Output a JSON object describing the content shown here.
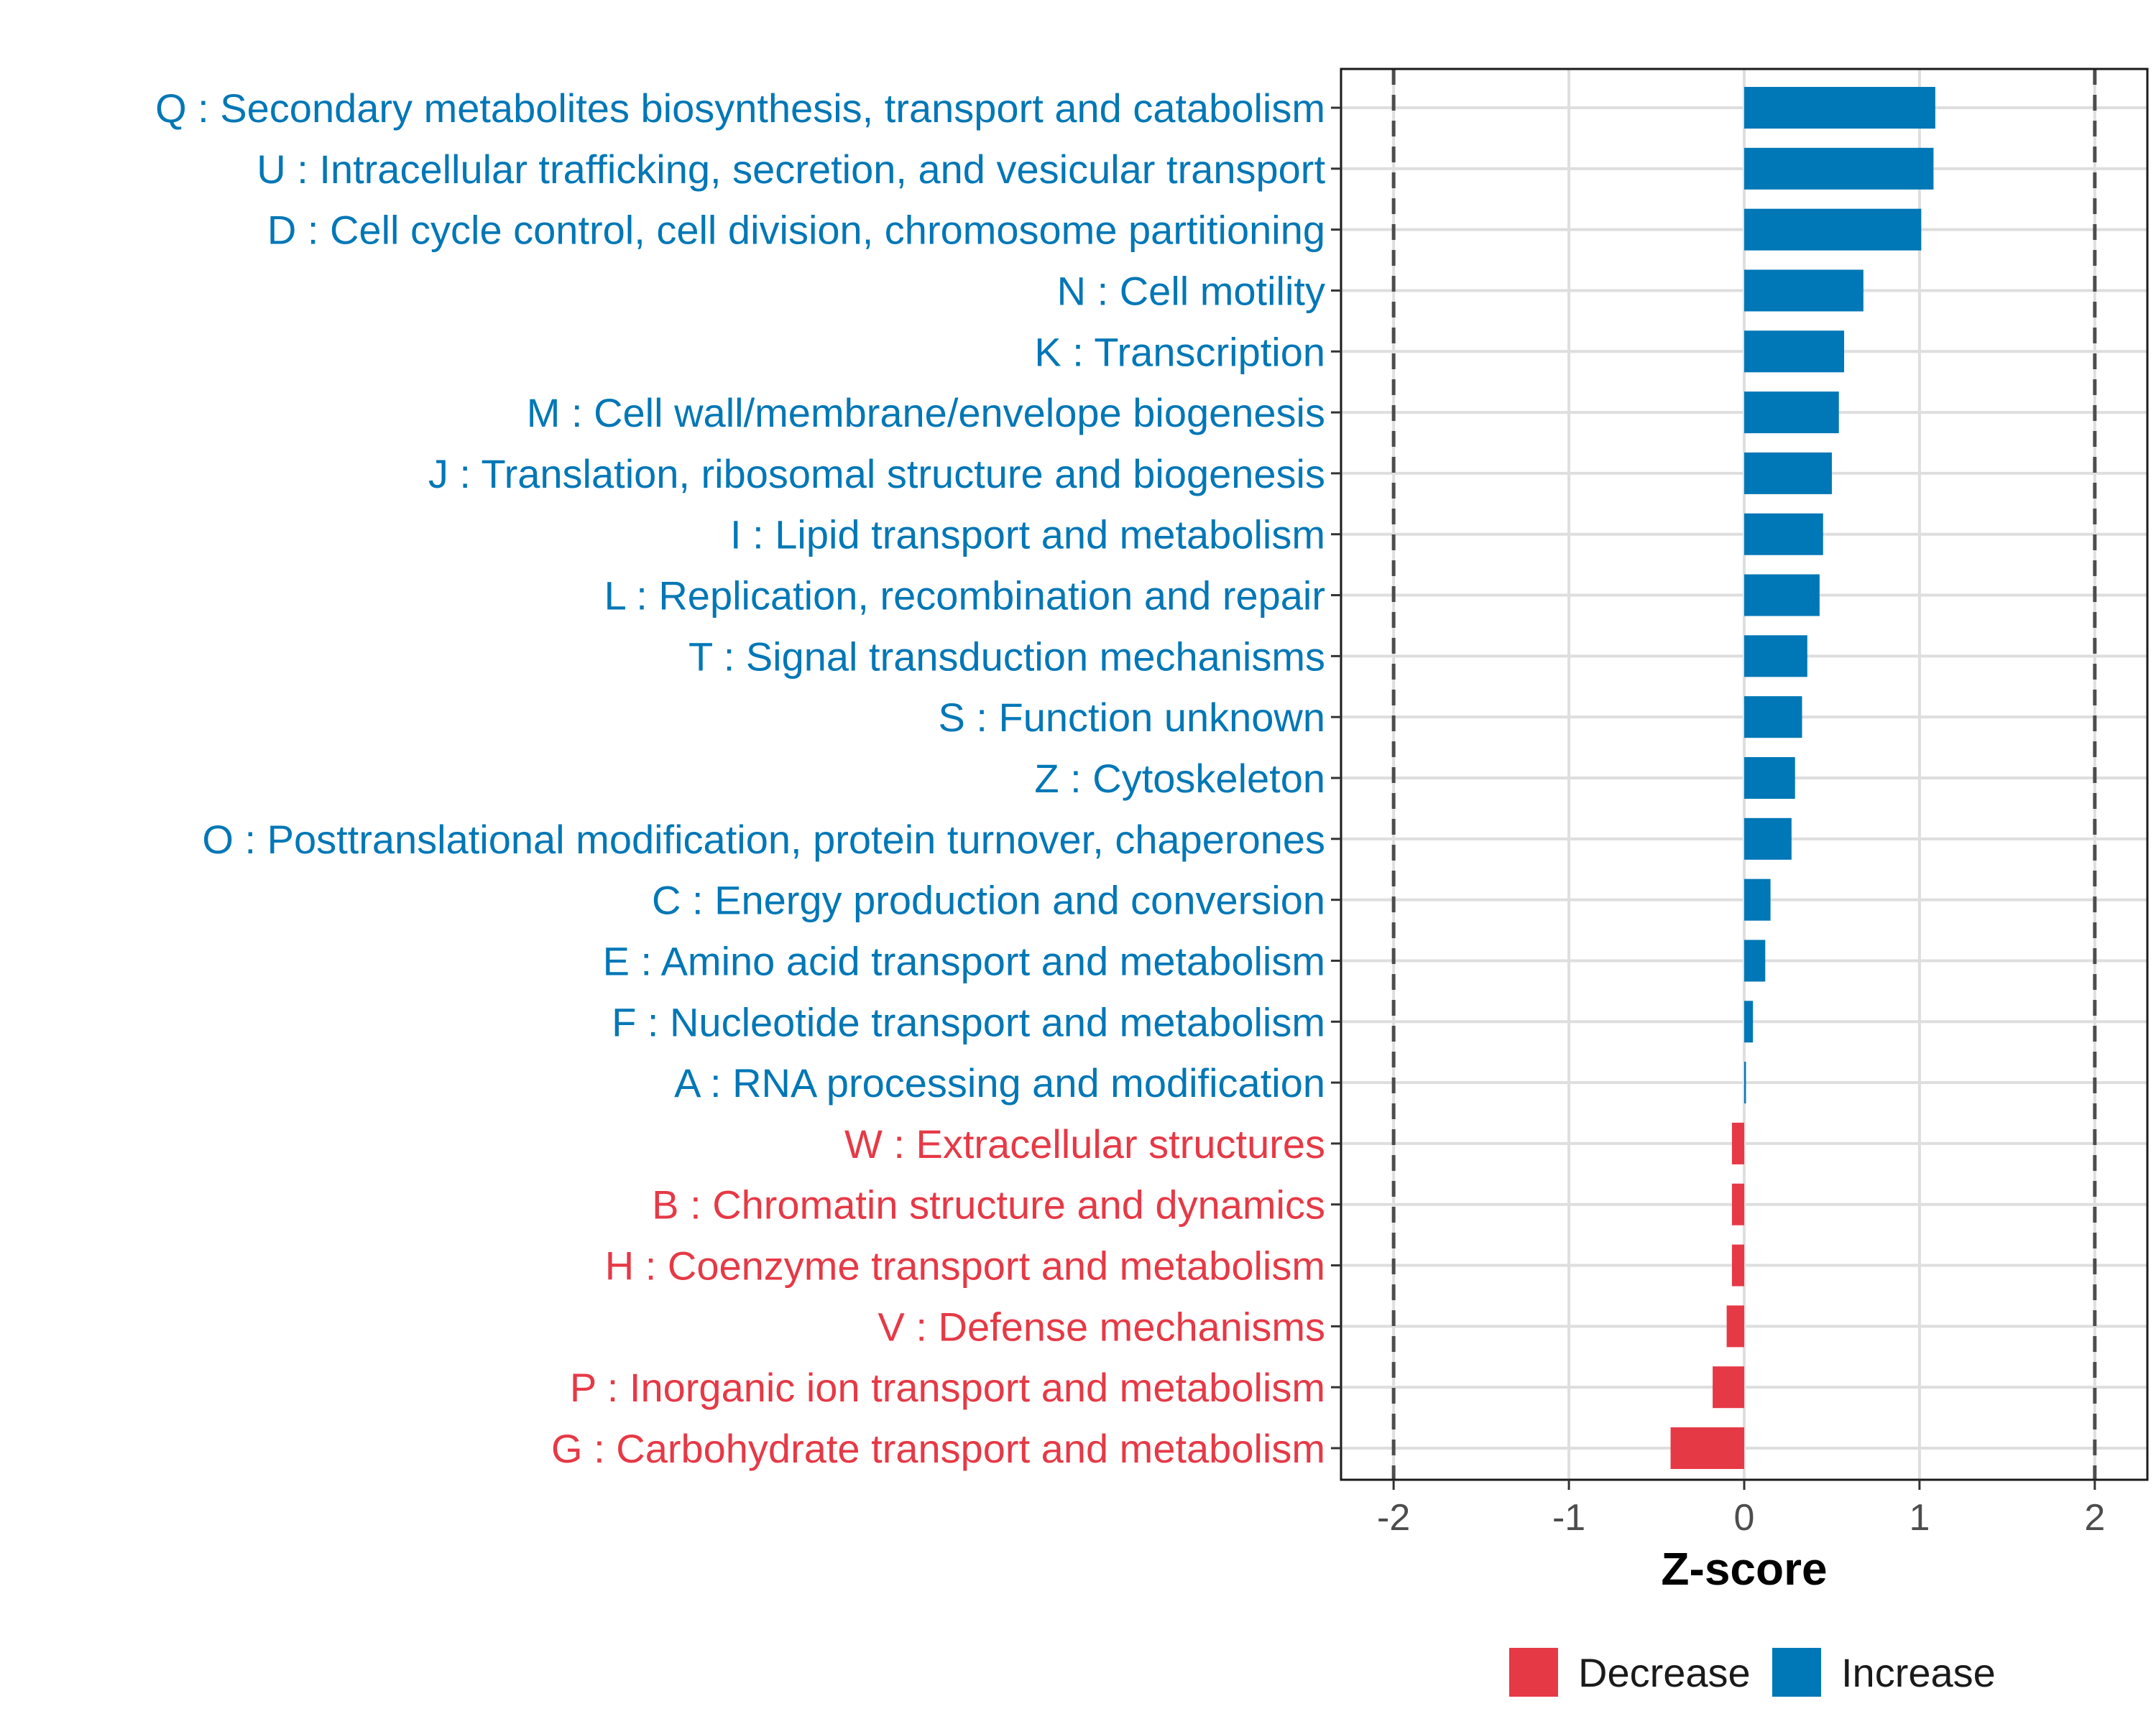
{
  "chart_data": {
    "type": "bar",
    "orientation": "horizontal",
    "xlabel": "Z-score",
    "ylabel": "",
    "xlim": [
      -2.3,
      2.3
    ],
    "x_ticks": [
      -2,
      -1,
      0,
      1,
      2
    ],
    "x_tick_labels": [
      "-2",
      "-1",
      "0",
      "1",
      "2"
    ],
    "reference_lines": [
      -2,
      2
    ],
    "grid": true,
    "legend_position": "bottom",
    "colors": {
      "Decrease": "#e63946",
      "Increase": "#0077b6"
    },
    "legend": [
      {
        "name": "Decrease",
        "color": "#e63946"
      },
      {
        "name": "Increase",
        "color": "#0077b6"
      }
    ],
    "categories": [
      "Q : Secondary metabolites biosynthesis, transport and catabolism",
      "U : Intracellular trafficking, secretion, and vesicular transport",
      "D : Cell cycle control, cell division, chromosome partitioning",
      "N : Cell motility",
      "K : Transcription",
      "M : Cell wall/membrane/envelope biogenesis",
      "J : Translation, ribosomal structure and biogenesis",
      "I : Lipid transport and metabolism",
      "L : Replication, recombination and repair",
      "T : Signal transduction mechanisms",
      "S : Function unknown",
      "Z : Cytoskeleton",
      "O : Posttranslational modification, protein turnover, chaperones",
      "C : Energy production and conversion",
      "E : Amino acid transport and metabolism",
      "F : Nucleotide transport and metabolism",
      "A : RNA processing and modification",
      "W : Extracellular structures",
      "B : Chromatin structure and dynamics",
      "H : Coenzyme transport and metabolism",
      "V : Defense mechanisms",
      "P : Inorganic ion transport and metabolism",
      "G : Carbohydrate transport and metabolism"
    ],
    "values": [
      1.09,
      1.08,
      1.01,
      0.68,
      0.57,
      0.54,
      0.5,
      0.45,
      0.43,
      0.36,
      0.33,
      0.29,
      0.27,
      0.15,
      0.12,
      0.05,
      0.01,
      -0.07,
      -0.07,
      -0.07,
      -0.1,
      -0.18,
      -0.42
    ],
    "groups": [
      "Increase",
      "Increase",
      "Increase",
      "Increase",
      "Increase",
      "Increase",
      "Increase",
      "Increase",
      "Increase",
      "Increase",
      "Increase",
      "Increase",
      "Increase",
      "Increase",
      "Increase",
      "Increase",
      "Increase",
      "Decrease",
      "Decrease",
      "Decrease",
      "Decrease",
      "Decrease",
      "Decrease"
    ]
  }
}
